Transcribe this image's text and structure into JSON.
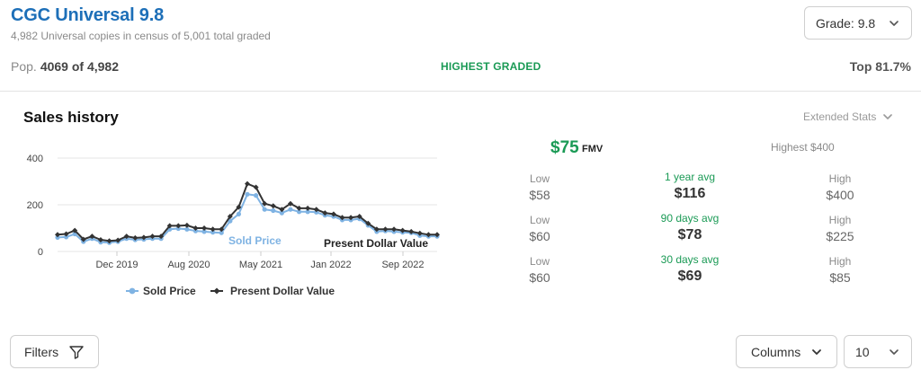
{
  "header": {
    "title": "CGC Universal 9.8",
    "subtitle": "4,982 Universal copies in census of 5,001 total graded",
    "grade_select": "Grade: 9.8",
    "pop_label": "Pop.",
    "pop_value": "4069 of 4,982",
    "highest_graded": "HIGHEST GRADED",
    "top_percent": "Top 81.7%"
  },
  "sales": {
    "title": "Sales history",
    "extended_stats": "Extended Stats"
  },
  "fmv": {
    "value": "$75",
    "suffix": "FMV",
    "highest": "Highest $400"
  },
  "stats": [
    {
      "low_label": "Low",
      "low": "$58",
      "avg_label": "1 year avg",
      "avg": "$116",
      "high_label": "High",
      "high": "$400"
    },
    {
      "low_label": "Low",
      "low": "$60",
      "avg_label": "90 days avg",
      "avg": "$78",
      "high_label": "High",
      "high": "$225"
    },
    {
      "low_label": "Low",
      "low": "$60",
      "avg_label": "30 days avg",
      "avg": "$69",
      "high_label": "High",
      "high": "$85"
    }
  ],
  "controls": {
    "filters": "Filters",
    "columns": "Columns",
    "rows": "10"
  },
  "colors": {
    "title_blue": "#1d6fb8",
    "green": "#1a9a55",
    "sold_price": "#7fb3e3",
    "present_value": "#333333"
  },
  "chart_data": {
    "type": "line",
    "x_tick_labels": [
      "Dec 2019",
      "Aug 2020",
      "May 2021",
      "Jan 2022",
      "Sep 2022"
    ],
    "ylim": [
      0,
      400
    ],
    "y_ticks": [
      0,
      200,
      400
    ],
    "y_tick_labels": [
      "0",
      "200",
      "400"
    ],
    "grid": true,
    "legend": "bottom",
    "annotations": [
      {
        "text": "Sold Price",
        "series": "Sold Price"
      },
      {
        "text": "Present Dollar Value",
        "series": "Present Dollar Value"
      }
    ],
    "series": [
      {
        "name": "Sold Price",
        "values": [
          60,
          62,
          75,
          42,
          55,
          40,
          38,
          42,
          55,
          50,
          52,
          55,
          55,
          95,
          98,
          95,
          88,
          85,
          82,
          80,
          130,
          160,
          245,
          240,
          180,
          175,
          165,
          180,
          170,
          170,
          168,
          155,
          150,
          135,
          135,
          140,
          112,
          85,
          88,
          85,
          82,
          80,
          68,
          65,
          65
        ]
      },
      {
        "name": "Present Dollar Value",
        "values": [
          72,
          75,
          90,
          52,
          65,
          50,
          45,
          48,
          65,
          58,
          60,
          65,
          65,
          110,
          110,
          112,
          100,
          100,
          95,
          95,
          150,
          190,
          290,
          275,
          205,
          195,
          180,
          205,
          185,
          185,
          180,
          165,
          160,
          145,
          145,
          150,
          120,
          95,
          95,
          95,
          90,
          85,
          78,
          72,
          72
        ]
      }
    ]
  }
}
